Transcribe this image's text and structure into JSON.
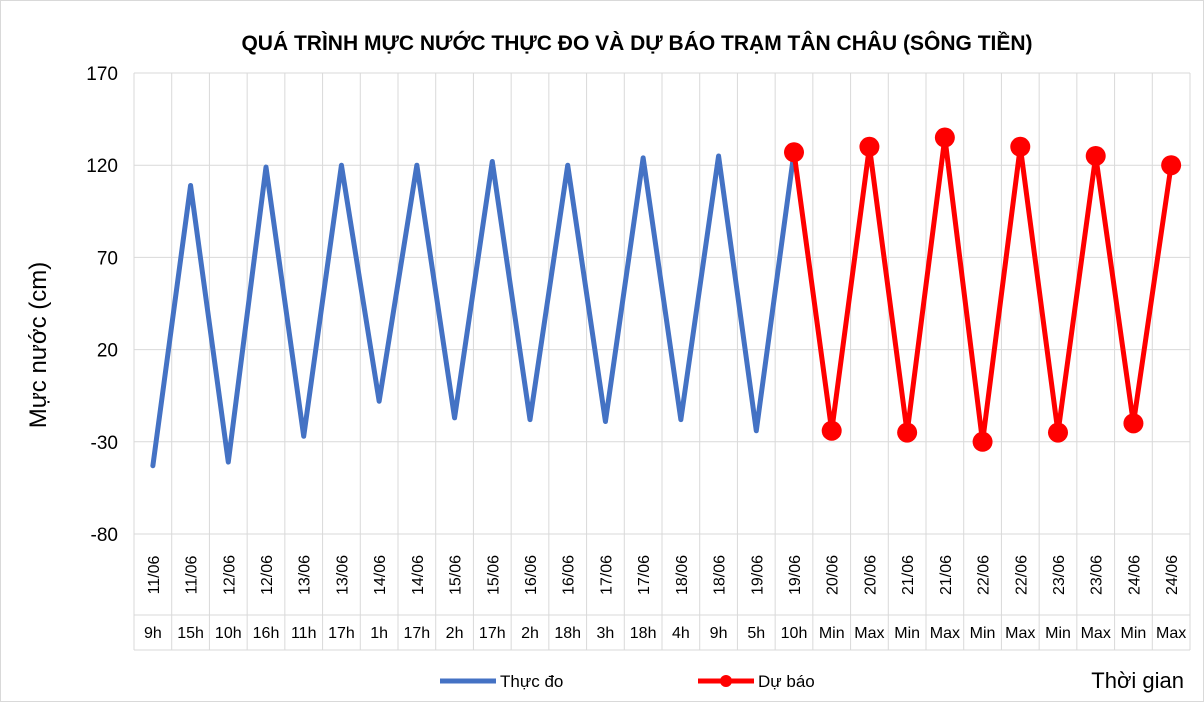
{
  "chart_data": {
    "type": "line",
    "title": "QUÁ TRÌNH MỰC NƯỚC THỰC ĐO VÀ DỰ BÁO TRẠM TÂN CHÂU (SÔNG TIỀN)",
    "y_label": "Mực nước (cm)",
    "x_label": "Thời gian",
    "categories": [
      [
        "11/06",
        "9h"
      ],
      [
        "11/06",
        "15h"
      ],
      [
        "12/06",
        "10h"
      ],
      [
        "12/06",
        "16h"
      ],
      [
        "13/06",
        "11h"
      ],
      [
        "13/06",
        "17h"
      ],
      [
        "14/06",
        "1h"
      ],
      [
        "14/06",
        "17h"
      ],
      [
        "15/06",
        "2h"
      ],
      [
        "15/06",
        "17h"
      ],
      [
        "16/06",
        "2h"
      ],
      [
        "16/06",
        "18h"
      ],
      [
        "17/06",
        "3h"
      ],
      [
        "17/06",
        "18h"
      ],
      [
        "18/06",
        "4h"
      ],
      [
        "18/06",
        "9h"
      ],
      [
        "19/06",
        "5h"
      ],
      [
        "19/06",
        "10h"
      ],
      [
        "20/06",
        "Min"
      ],
      [
        "20/06",
        "Max"
      ],
      [
        "21/06",
        "Min"
      ],
      [
        "21/06",
        "Max"
      ],
      [
        "22/06",
        "Min"
      ],
      [
        "22/06",
        "Max"
      ],
      [
        "23/06",
        "Min"
      ],
      [
        "23/06",
        "Max"
      ],
      [
        "24/06",
        "Min"
      ],
      [
        "24/06",
        "Max"
      ]
    ],
    "series": [
      {
        "name": "Thực đo",
        "color": "#4472c4",
        "marker": false,
        "values": [
          -43,
          109,
          -41,
          119,
          -27,
          120,
          -8,
          120,
          -17,
          122,
          -18,
          120,
          -19,
          124,
          -18,
          125,
          -24,
          127,
          null,
          null,
          null,
          null,
          null,
          null,
          null,
          null,
          null,
          null
        ]
      },
      {
        "name": "Dự báo",
        "color": "#ff0000",
        "marker": true,
        "values": [
          null,
          null,
          null,
          null,
          null,
          null,
          null,
          null,
          null,
          null,
          null,
          null,
          null,
          null,
          null,
          null,
          null,
          127,
          -24,
          130,
          -25,
          135,
          -30,
          130,
          -25,
          125,
          -20,
          120
        ]
      }
    ],
    "ylim": [
      -80,
      170
    ],
    "yticks": [
      -80,
      -30,
      20,
      70,
      120,
      170
    ],
    "grid": true,
    "legend": "bottom"
  }
}
